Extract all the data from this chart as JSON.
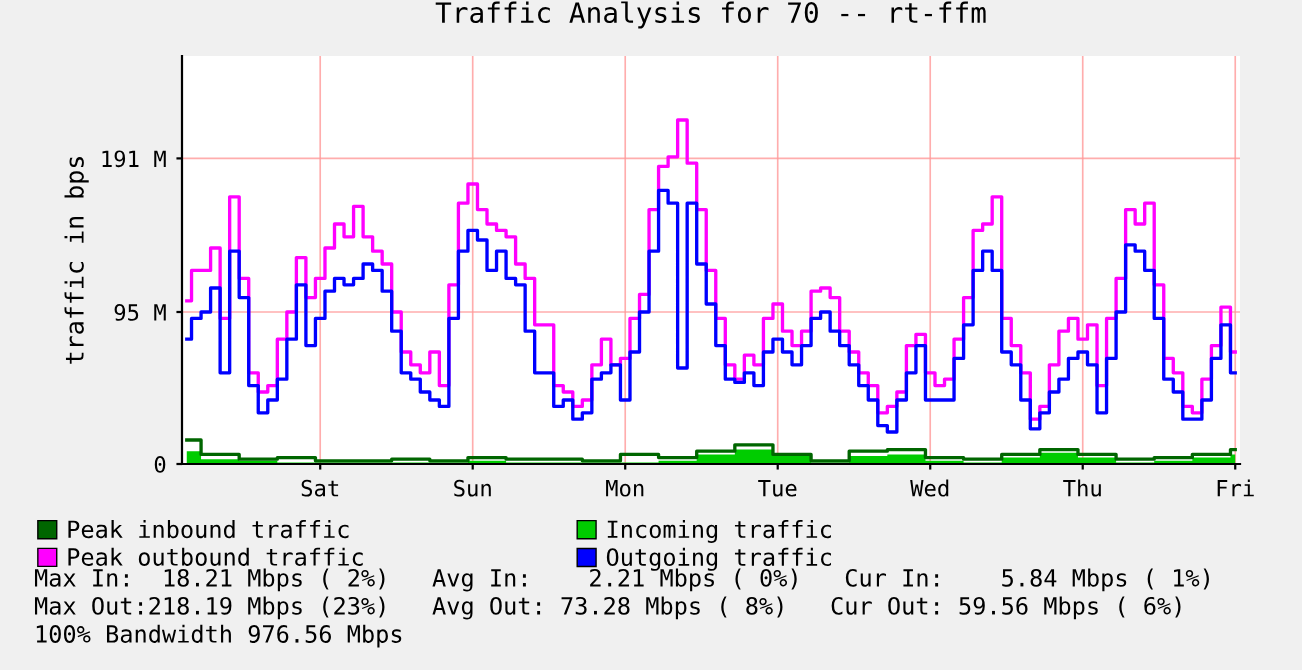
{
  "chart_data": {
    "type": "step",
    "title": "Traffic Analysis for 70 -- rt-ffm",
    "ylabel": "traffic in bps",
    "categories": [
      null,
      null,
      null,
      null,
      null,
      null,
      null,
      null,
      null,
      null,
      null,
      null,
      null,
      null,
      "Sat",
      null,
      null,
      null,
      null,
      null,
      null,
      null,
      null,
      null,
      null,
      null,
      null,
      null,
      null,
      null,
      "Sun",
      null,
      null,
      null,
      null,
      null,
      null,
      null,
      null,
      null,
      null,
      null,
      null,
      null,
      null,
      null,
      "Mon",
      null,
      null,
      null,
      null,
      null,
      null,
      null,
      null,
      null,
      null,
      null,
      null,
      null,
      null,
      null,
      "Tue",
      null,
      null,
      null,
      null,
      null,
      null,
      null,
      null,
      null,
      null,
      null,
      null,
      null,
      null,
      null,
      "Wed",
      null,
      null,
      null,
      null,
      null,
      null,
      null,
      null,
      null,
      null,
      null,
      null,
      null,
      null,
      null,
      "Thu",
      null,
      null,
      null,
      null,
      null,
      null,
      null,
      null,
      null,
      null,
      null,
      null,
      null,
      null,
      null,
      "Fri"
    ],
    "ylim": [
      0,
      255
    ],
    "yticks": [
      {
        "value": 0,
        "label": "0"
      },
      {
        "value": 95,
        "label": "95 M"
      },
      {
        "value": 191,
        "label": "191 M"
      }
    ],
    "grid": true,
    "legend": "bottom",
    "series": [
      {
        "name": "Peak inbound traffic",
        "color": "#006600",
        "values": [
          15,
          15,
          6,
          6,
          6,
          6,
          3,
          3,
          3,
          3,
          4,
          4,
          4,
          4,
          2,
          2,
          2,
          2,
          2,
          2,
          2,
          2,
          3,
          3,
          3,
          3,
          2,
          2,
          2,
          2,
          4,
          4,
          4,
          4,
          3,
          3,
          3,
          3,
          3,
          3,
          3,
          3,
          2,
          2,
          2,
          2,
          6,
          6,
          6,
          6,
          4,
          4,
          4,
          4,
          8,
          8,
          8,
          8,
          12,
          12,
          12,
          12,
          6,
          6,
          6,
          6,
          2,
          2,
          2,
          2,
          8,
          8,
          8,
          8,
          9,
          9,
          9,
          9,
          4,
          4,
          4,
          4,
          3,
          3,
          3,
          3,
          6,
          6,
          6,
          6,
          9,
          9,
          9,
          9,
          6,
          6,
          6,
          6,
          3,
          3,
          3,
          3,
          4,
          4,
          4,
          4,
          6,
          6,
          6,
          6,
          9
        ]
      },
      {
        "name": "Peak outbound traffic",
        "color": "#ff00ff",
        "line_style": "solid",
        "values": [
          102,
          121,
          121,
          135,
          91,
          167,
          116,
          57,
          45,
          49,
          78,
          95,
          129,
          104,
          116,
          135,
          150,
          142,
          161,
          142,
          133,
          125,
          95,
          70,
          62,
          57,
          70,
          49,
          112,
          163,
          175,
          159,
          150,
          146,
          142,
          125,
          116,
          87,
          87,
          49,
          45,
          36,
          40,
          62,
          78,
          62,
          66,
          91,
          106,
          159,
          186,
          192,
          215,
          188,
          159,
          121,
          91,
          62,
          53,
          68,
          62,
          91,
          100,
          83,
          74,
          83,
          108,
          110,
          104,
          83,
          70,
          57,
          49,
          32,
          36,
          45,
          74,
          81,
          57,
          49,
          53,
          78,
          104,
          146,
          150,
          167,
          91,
          74,
          57,
          28,
          36,
          62,
          83,
          91,
          78,
          87,
          49,
          91,
          116,
          159,
          150,
          163,
          112,
          66,
          57,
          36,
          32,
          53,
          74,
          98,
          70
        ]
      },
      {
        "name": "Incoming traffic",
        "color": "#00cc00",
        "type": "area",
        "values": [
          8,
          8,
          3,
          3,
          3,
          3,
          2,
          2,
          2,
          2,
          1,
          1,
          1,
          1,
          1,
          1,
          1,
          1,
          1,
          1,
          1,
          1,
          1,
          1,
          1,
          1,
          1,
          1,
          1,
          1,
          2,
          2,
          2,
          2,
          1,
          1,
          1,
          1,
          1,
          1,
          1,
          1,
          1,
          1,
          1,
          1,
          1,
          1,
          1,
          1,
          2,
          2,
          2,
          2,
          6,
          6,
          6,
          6,
          9,
          9,
          9,
          9,
          5,
          5,
          5,
          5,
          1,
          1,
          1,
          1,
          5,
          5,
          5,
          5,
          6,
          6,
          6,
          6,
          2,
          2,
          2,
          2,
          1,
          1,
          1,
          1,
          4,
          4,
          4,
          4,
          7,
          7,
          7,
          7,
          4,
          4,
          4,
          4,
          1,
          1,
          1,
          1,
          2,
          2,
          2,
          2,
          4,
          4,
          4,
          4,
          6
        ]
      },
      {
        "name": "Outgoing traffic",
        "color": "#0000ff",
        "values": [
          78,
          91,
          95,
          110,
          57,
          133,
          104,
          49,
          32,
          40,
          53,
          78,
          112,
          74,
          91,
          108,
          116,
          112,
          116,
          125,
          121,
          108,
          83,
          57,
          53,
          45,
          40,
          36,
          91,
          133,
          146,
          140,
          121,
          133,
          116,
          112,
          83,
          57,
          57,
          36,
          40,
          28,
          32,
          53,
          57,
          62,
          40,
          70,
          95,
          133,
          171,
          163,
          60,
          163,
          125,
          100,
          74,
          53,
          51,
          57,
          49,
          70,
          78,
          70,
          62,
          74,
          91,
          95,
          83,
          74,
          62,
          49,
          40,
          24,
          20,
          40,
          57,
          74,
          40,
          40,
          40,
          66,
          87,
          121,
          133,
          121,
          70,
          62,
          40,
          22,
          32,
          45,
          53,
          66,
          70,
          62,
          32,
          66,
          95,
          137,
          133,
          121,
          91,
          53,
          45,
          28,
          28,
          40,
          66,
          87,
          57
        ]
      }
    ],
    "annotations": [
      "Max In:  18.21 Mbps ( 2%)   Avg In:    2.21 Mbps ( 0%)   Cur In:    5.84 Mbps ( 1%)",
      "Max Out:218.19 Mbps (23%)   Avg Out: 73.28 Mbps ( 8%)   Cur Out: 59.56 Mbps ( 6%)",
      "100% Bandwidth 976.56 Mbps"
    ]
  }
}
